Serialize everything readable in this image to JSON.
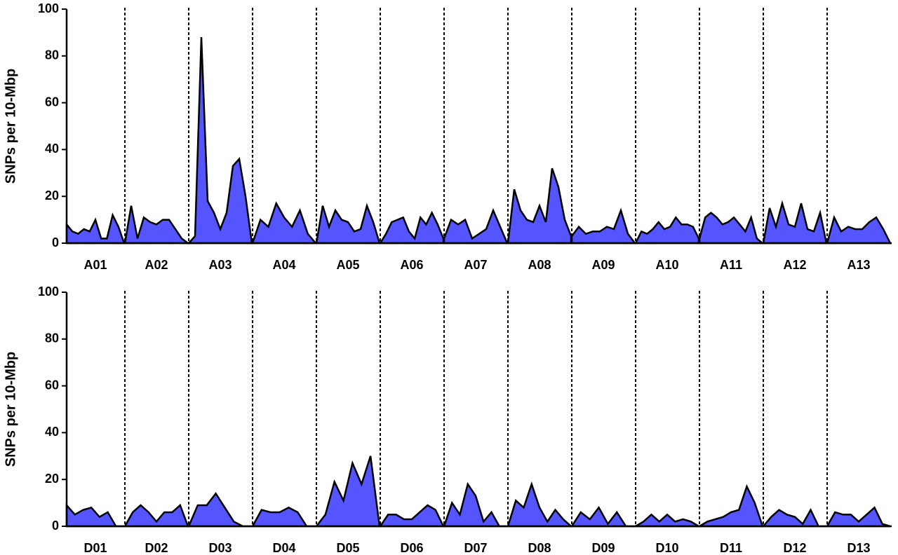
{
  "chart_data": [
    {
      "type": "area",
      "ylabel": "SNPs per 10-Mbp",
      "ylim": [
        0,
        100
      ],
      "yticks": [
        0,
        20,
        40,
        60,
        80,
        100
      ],
      "color": "#5555ff",
      "series": [
        {
          "name": "A01",
          "values": [
            8,
            5,
            4,
            6,
            5,
            10,
            2,
            2,
            12,
            7,
            0
          ]
        },
        {
          "name": "A02",
          "values": [
            0,
            16,
            2,
            11,
            9,
            8,
            10,
            10,
            6,
            2,
            0
          ]
        },
        {
          "name": "A03",
          "values": [
            0,
            3,
            88,
            18,
            13,
            6,
            13,
            33,
            36,
            20,
            0
          ]
        },
        {
          "name": "A04",
          "values": [
            0,
            10,
            7,
            17,
            11,
            7,
            14,
            4,
            0
          ]
        },
        {
          "name": "A05",
          "values": [
            0,
            16,
            7,
            14,
            10,
            9,
            5,
            6,
            16,
            9,
            0
          ]
        },
        {
          "name": "A06",
          "values": [
            0,
            4,
            9,
            10,
            11,
            5,
            2,
            11,
            8,
            13,
            8,
            2
          ]
        },
        {
          "name": "A07",
          "values": [
            2,
            10,
            8,
            10,
            2,
            4,
            6,
            14,
            7,
            0
          ]
        },
        {
          "name": "A08",
          "values": [
            0,
            23,
            14,
            10,
            9,
            16,
            9,
            32,
            24,
            10,
            3
          ]
        },
        {
          "name": "A09",
          "values": [
            3,
            7,
            4,
            5,
            5,
            7,
            6,
            14,
            4,
            0
          ]
        },
        {
          "name": "A10",
          "values": [
            0,
            5,
            4,
            6,
            9,
            6,
            7,
            11,
            8,
            8,
            7,
            2
          ]
        },
        {
          "name": "A11",
          "values": [
            2,
            11,
            13,
            11,
            8,
            9,
            11,
            8,
            5,
            11,
            2,
            0
          ]
        },
        {
          "name": "A12",
          "values": [
            0,
            15,
            7,
            17,
            8,
            7,
            17,
            6,
            5,
            13,
            0
          ]
        },
        {
          "name": "A13",
          "values": [
            0,
            11,
            5,
            7,
            6,
            6,
            9,
            11,
            6,
            0
          ]
        }
      ]
    },
    {
      "type": "area",
      "ylabel": "SNPs per 10-Mbp",
      "ylim": [
        0,
        100
      ],
      "yticks": [
        0,
        20,
        40,
        60,
        80,
        100
      ],
      "color": "#5555ff",
      "series": [
        {
          "name": "D01",
          "values": [
            9,
            5,
            7,
            8,
            4,
            6,
            0,
            0
          ]
        },
        {
          "name": "D02",
          "values": [
            0,
            6,
            9,
            6,
            2,
            6,
            6,
            9,
            0
          ]
        },
        {
          "name": "D03",
          "values": [
            0,
            9,
            9,
            14,
            8,
            2,
            0,
            0
          ]
        },
        {
          "name": "D04",
          "values": [
            0,
            7,
            6,
            6,
            8,
            6,
            0,
            0
          ]
        },
        {
          "name": "D05",
          "values": [
            0,
            5,
            19,
            11,
            27,
            18,
            30,
            0
          ]
        },
        {
          "name": "D06",
          "values": [
            0,
            5,
            5,
            3,
            3,
            6,
            9,
            7,
            0
          ]
        },
        {
          "name": "D07",
          "values": [
            0,
            10,
            5,
            18,
            13,
            2,
            6,
            0,
            0
          ]
        },
        {
          "name": "D08",
          "values": [
            0,
            11,
            8,
            18,
            8,
            2,
            7,
            3,
            0
          ]
        },
        {
          "name": "D09",
          "values": [
            0,
            6,
            3,
            8,
            1,
            6,
            0,
            0
          ]
        },
        {
          "name": "D10",
          "values": [
            0,
            2,
            5,
            2,
            5,
            2,
            3,
            2,
            0
          ]
        },
        {
          "name": "D11",
          "values": [
            0,
            2,
            3,
            4,
            6,
            7,
            17,
            10,
            0
          ]
        },
        {
          "name": "D12",
          "values": [
            0,
            4,
            7,
            5,
            4,
            1,
            7,
            0,
            0
          ]
        },
        {
          "name": "D13",
          "values": [
            0,
            6,
            5,
            5,
            2,
            5,
            8,
            1,
            0
          ]
        }
      ]
    }
  ]
}
